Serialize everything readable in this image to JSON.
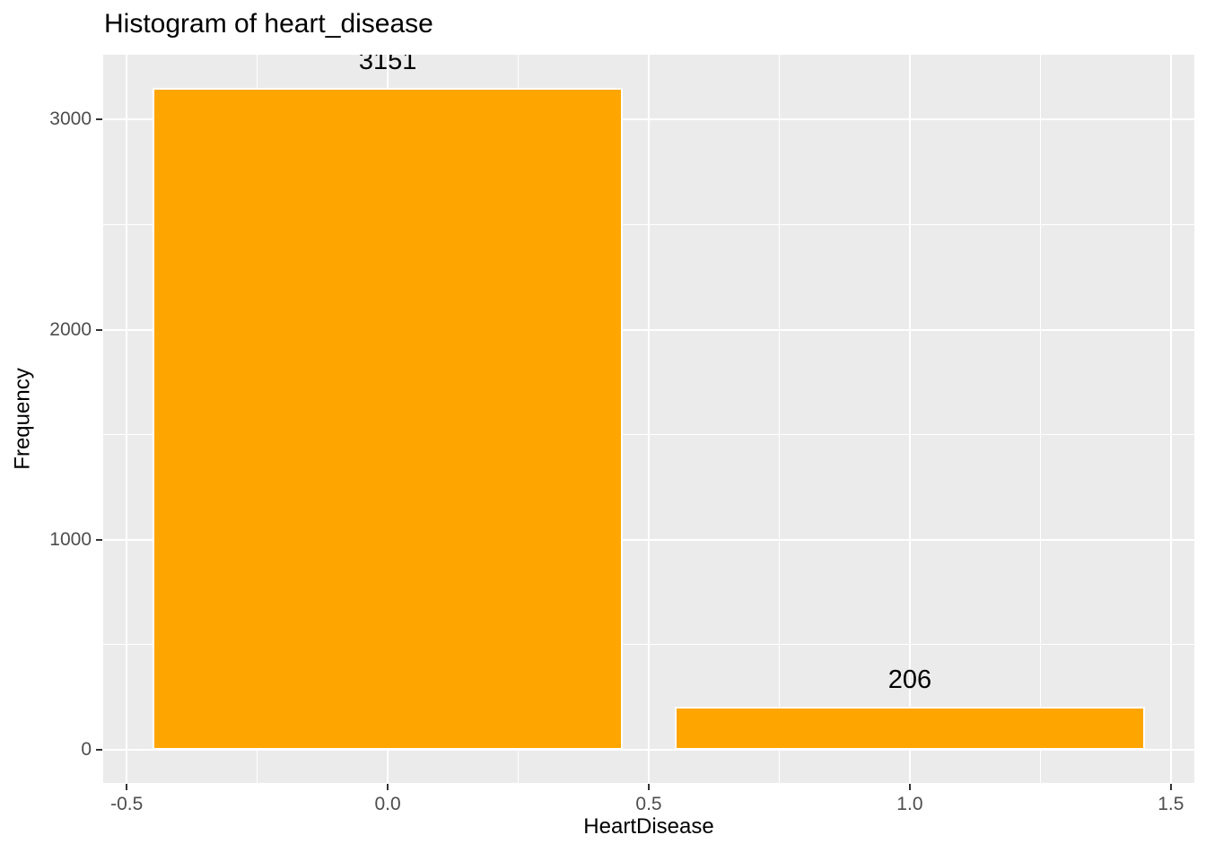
{
  "title": "Histogram of heart_disease",
  "colors": {
    "bar_fill": "#FFA500",
    "bar_border": "#FFFFFF",
    "panel_background": "#EBEBEB",
    "gridline": "#FFFFFF",
    "tick_label": "#4D4D4D",
    "tick_mark": "#333333",
    "text": "#000000"
  },
  "chart_data": {
    "type": "bar",
    "title": "Histogram of heart_disease",
    "xlabel": "HeartDisease",
    "ylabel": "Frequency",
    "bars": [
      {
        "center": 0,
        "width": 0.9,
        "value": 3151,
        "label": "3151"
      },
      {
        "center": 1,
        "width": 0.9,
        "value": 206,
        "label": "206"
      }
    ],
    "xlim": [
      -0.545,
      1.545
    ],
    "ylim": [
      -157.55,
      3308.55
    ],
    "x_major_ticks": [
      -0.5,
      0.0,
      0.5,
      1.0,
      1.5
    ],
    "x_major_labels": [
      "-0.5",
      "0.0",
      "0.5",
      "1.0",
      "1.5"
    ],
    "x_minor_ticks": [
      -0.25,
      0.25,
      0.75,
      1.25
    ],
    "y_major_ticks": [
      0,
      1000,
      2000,
      3000
    ],
    "y_major_labels": [
      "0",
      "1000",
      "2000",
      "3000"
    ],
    "y_minor_ticks": [
      500,
      1500,
      2500
    ],
    "grid": true,
    "legend_position": "none"
  }
}
